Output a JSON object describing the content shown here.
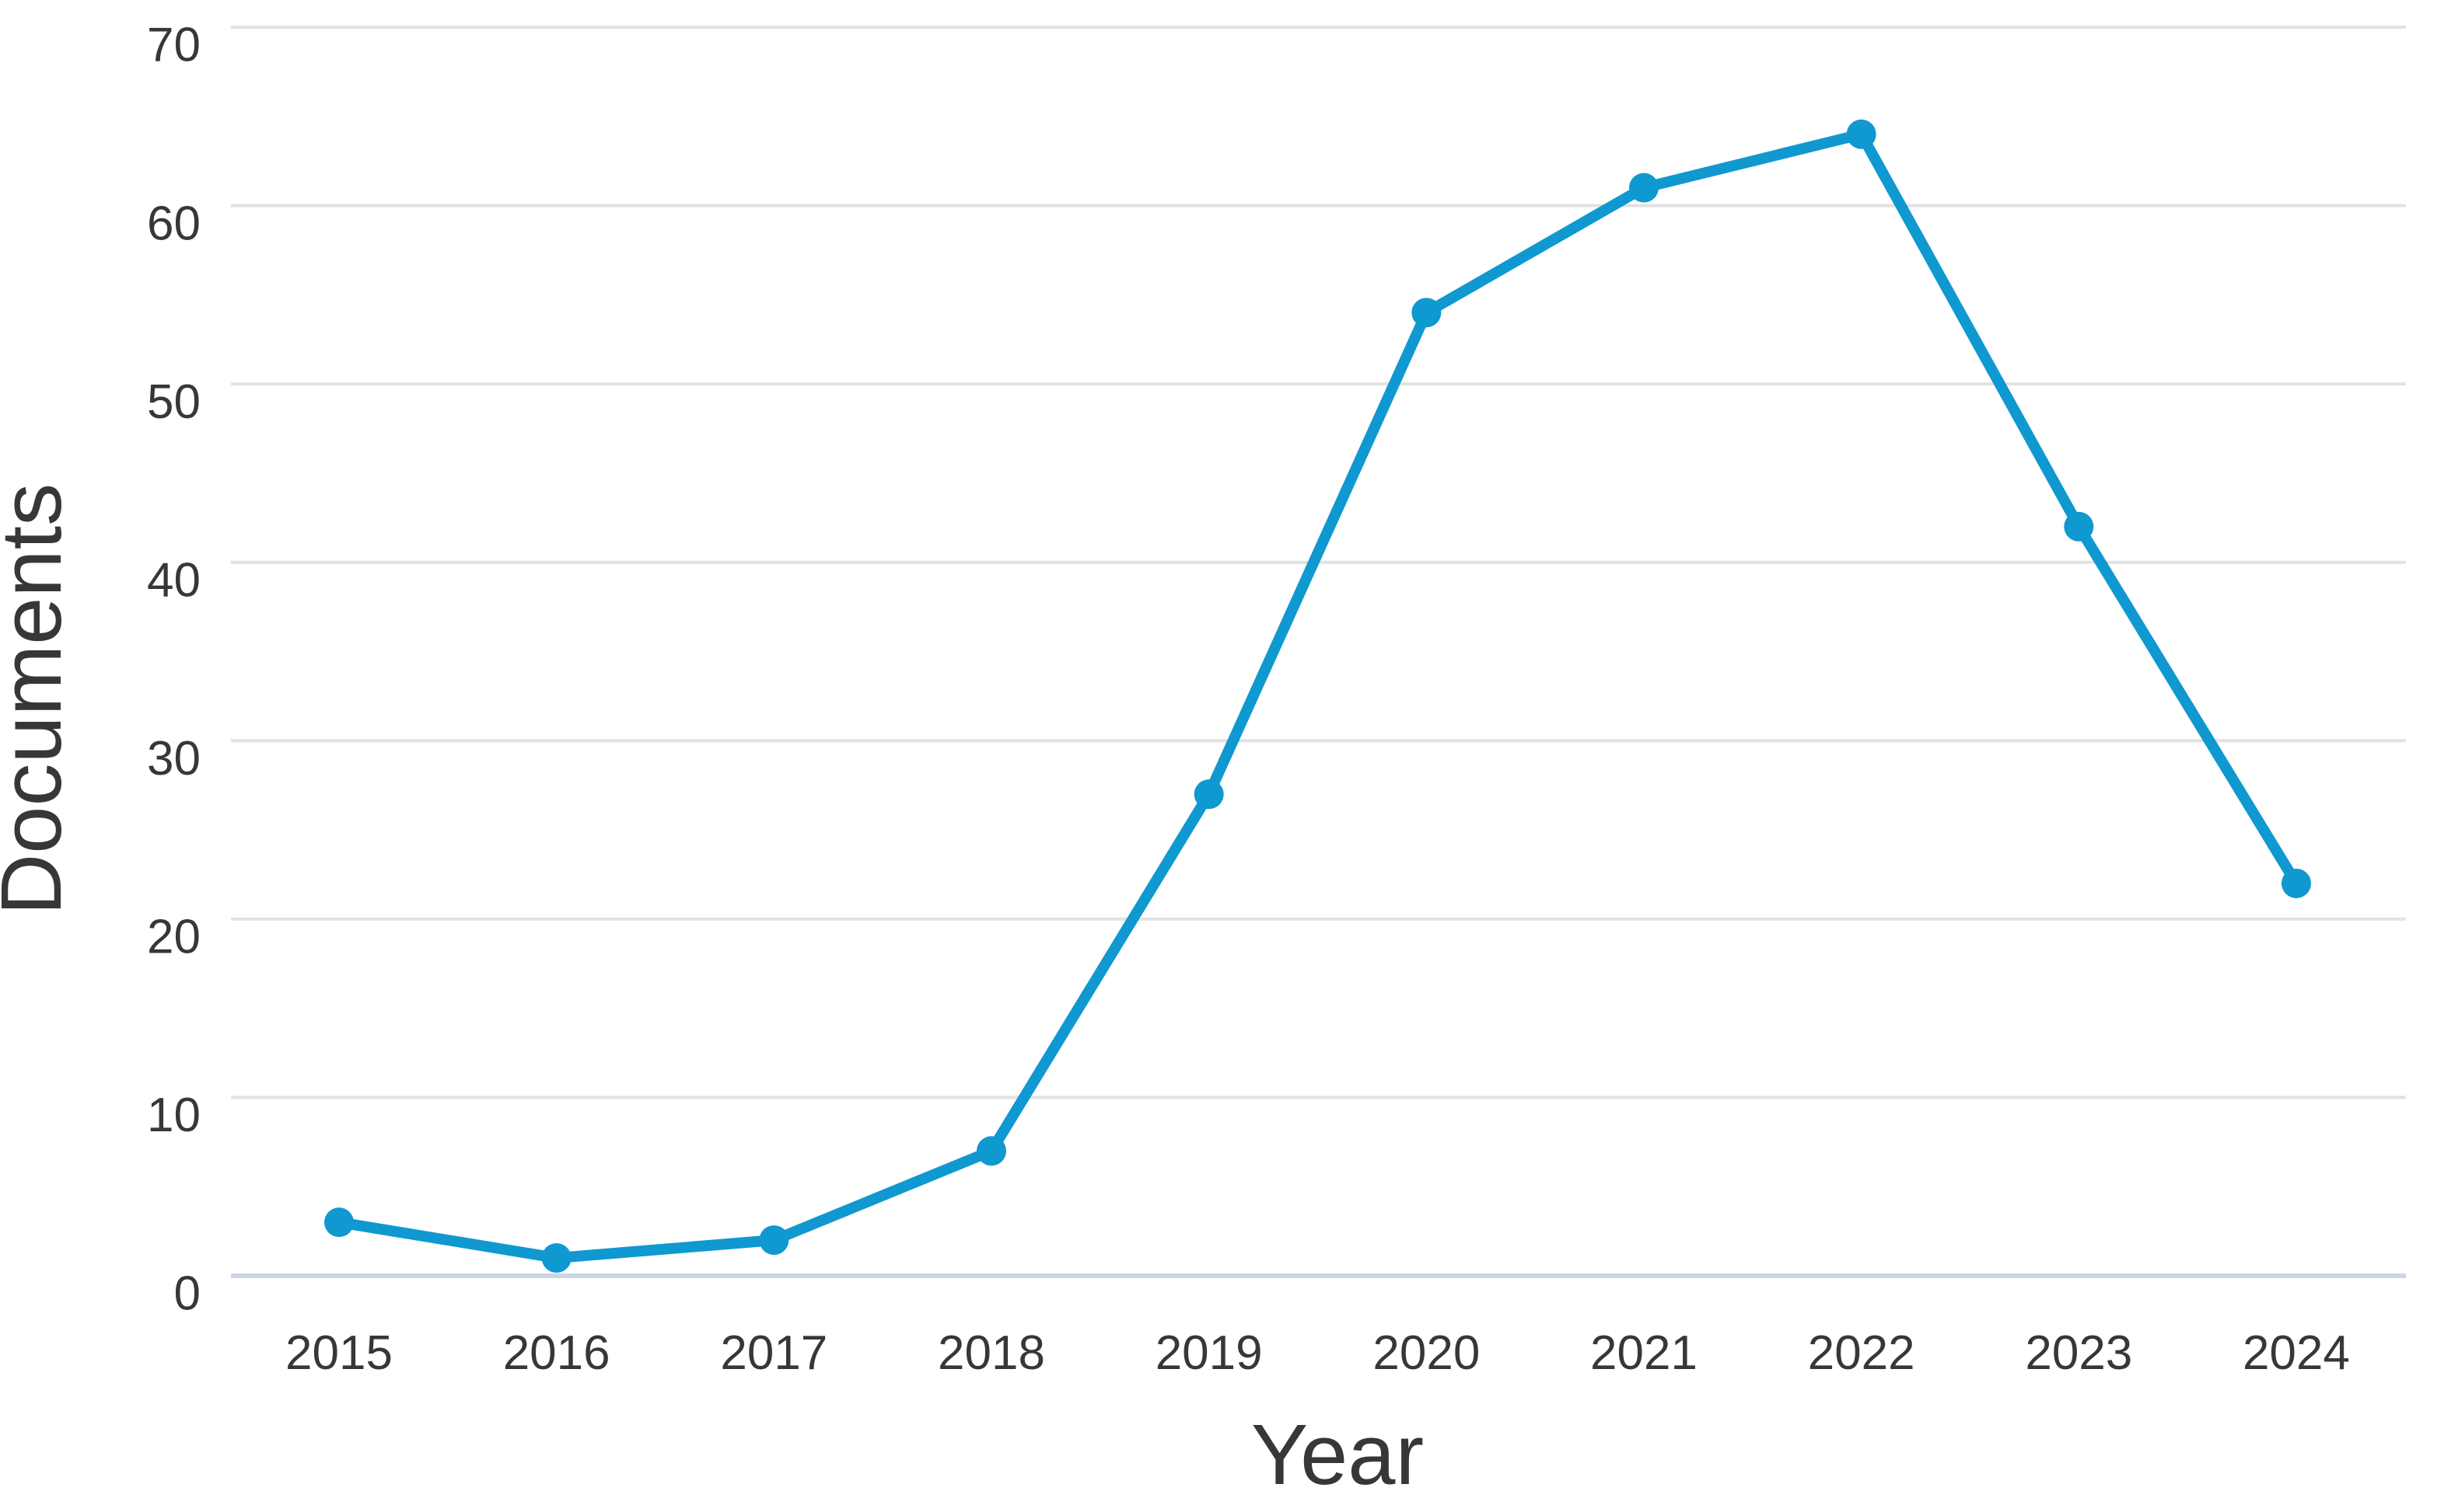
{
  "page": {
    "background": "#ffffff"
  },
  "chart_data": {
    "type": "line",
    "title": "",
    "categories": [
      "2015",
      "2016",
      "2017",
      "2018",
      "2019",
      "2020",
      "2021",
      "2022",
      "2023",
      "2024"
    ],
    "series": [
      {
        "name": "Documents",
        "values": [
          3,
          1,
          2,
          7,
          27,
          54,
          61,
          64,
          42,
          22
        ]
      }
    ],
    "xlabel": "Year",
    "ylabel": "Documents",
    "ylim": [
      0,
      70
    ],
    "yticks": [
      0,
      10,
      20,
      30,
      40,
      50,
      60,
      70
    ],
    "grid": true,
    "legend_position": "none",
    "colors": {
      "line": "#1098d0",
      "marker": "#1098d0",
      "gridline": "#e2e2e2",
      "zero_line": "#ccd5e8",
      "tick_text": "#373737",
      "axis_title_text": "#373737"
    }
  }
}
